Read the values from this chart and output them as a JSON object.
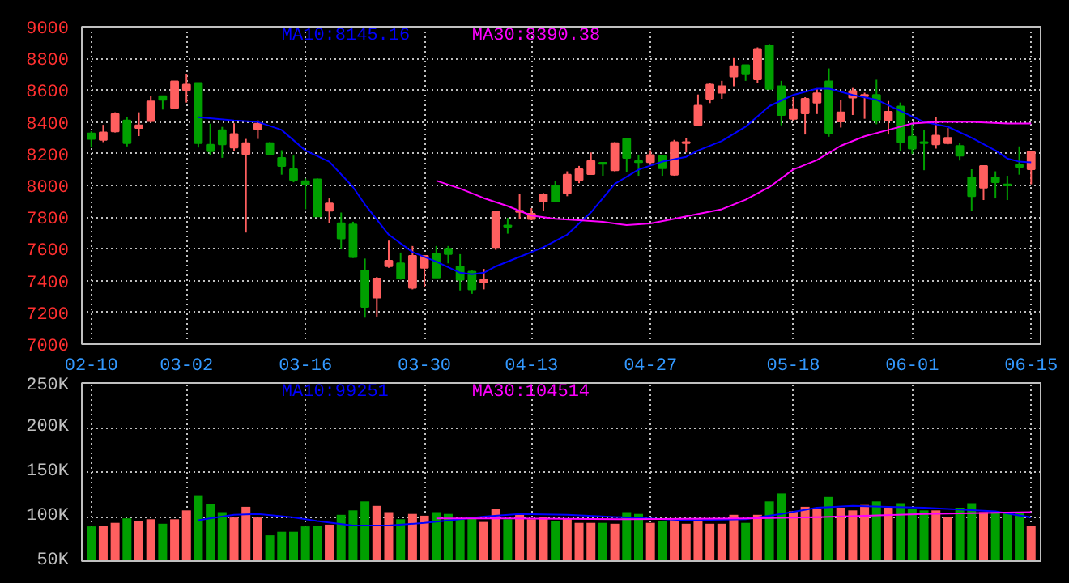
{
  "chart_data": [
    {
      "type": "candlestick",
      "categories": [
        "02-10",
        null,
        null,
        null,
        null,
        null,
        null,
        null,
        "03-02",
        null,
        null,
        null,
        null,
        null,
        null,
        null,
        null,
        null,
        "03-16",
        null,
        null,
        null,
        null,
        null,
        null,
        null,
        null,
        null,
        "03-30",
        null,
        null,
        null,
        null,
        null,
        null,
        null,
        null,
        "04-13",
        null,
        null,
        null,
        null,
        null,
        null,
        null,
        null,
        null,
        "04-27",
        null,
        null,
        null,
        null,
        null,
        null,
        null,
        null,
        null,
        null,
        null,
        "05-18",
        null,
        null,
        null,
        null,
        null,
        null,
        null,
        null,
        null,
        "06-01",
        null,
        null,
        null,
        null,
        null,
        null,
        null,
        null,
        null,
        "06-15"
      ],
      "ohlc": [
        [
          8328,
          8341,
          8239,
          8294
        ],
        [
          8287,
          8382,
          8273,
          8334
        ],
        [
          8341,
          8461,
          8334,
          8450
        ],
        [
          8410,
          8430,
          8246,
          8266
        ],
        [
          8362,
          8461,
          8311,
          8379
        ],
        [
          8406,
          8563,
          8396,
          8529
        ],
        [
          8563,
          8563,
          8478,
          8539
        ],
        [
          8488,
          8655,
          8485,
          8655
        ],
        [
          8601,
          8700,
          8522,
          8635
        ],
        [
          8645,
          8645,
          8239,
          8266
        ],
        [
          8256,
          8389,
          8191,
          8215
        ],
        [
          8348,
          8369,
          8174,
          8259
        ],
        [
          8239,
          8392,
          8218,
          8324
        ],
        [
          8198,
          8293,
          7703,
          8266
        ],
        [
          8355,
          8410,
          8293,
          8389
        ],
        [
          8266,
          8273,
          8191,
          8198
        ],
        [
          8174,
          8222,
          8068,
          8123
        ],
        [
          8102,
          8188,
          8020,
          8034
        ],
        [
          8027,
          8044,
          7850,
          8007
        ],
        [
          8038,
          8044,
          7805,
          7805
        ],
        [
          7840,
          7918,
          7761,
          7887
        ],
        [
          7761,
          7829,
          7601,
          7666
        ],
        [
          7754,
          7771,
          7543,
          7549
        ],
        [
          7464,
          7539,
          7167,
          7235
        ],
        [
          7294,
          7423,
          7174,
          7413
        ],
        [
          7491,
          7652,
          7481,
          7526
        ],
        [
          7509,
          7577,
          7406,
          7413
        ],
        [
          7355,
          7618,
          7345,
          7556
        ],
        [
          7481,
          7556,
          7362,
          7556
        ],
        [
          7567,
          7618,
          7420,
          7420
        ],
        [
          7601,
          7618,
          7509,
          7567
        ],
        [
          7488,
          7567,
          7338,
          7406
        ],
        [
          7457,
          7464,
          7317,
          7345
        ],
        [
          7389,
          7474,
          7345,
          7406
        ],
        [
          7611,
          7840,
          7594,
          7833
        ],
        [
          7747,
          7795,
          7696,
          7740
        ],
        [
          7833,
          7949,
          7788,
          7840
        ],
        [
          7788,
          7857,
          7781,
          7822
        ],
        [
          7898,
          7952,
          7840,
          7942
        ],
        [
          8000,
          8027,
          7898,
          7898
        ],
        [
          7952,
          8089,
          7932,
          8068
        ],
        [
          8034,
          8123,
          8014,
          8102
        ],
        [
          8072,
          8208,
          8072,
          8154
        ],
        [
          8143,
          8143,
          8061,
          8136
        ],
        [
          8096,
          8273,
          8089,
          8266
        ],
        [
          8293,
          8293,
          8085,
          8174
        ],
        [
          8154,
          8191,
          8061,
          8147
        ],
        [
          8147,
          8222,
          8123,
          8191
        ],
        [
          8184,
          8184,
          8061,
          8109
        ],
        [
          8068,
          8287,
          8061,
          8273
        ],
        [
          8266,
          8300,
          8208,
          8273
        ],
        [
          8382,
          8573,
          8375,
          8502
        ],
        [
          8546,
          8648,
          8519,
          8635
        ],
        [
          8584,
          8659,
          8546,
          8625
        ],
        [
          8686,
          8802,
          8625,
          8751
        ],
        [
          8758,
          8758,
          8659,
          8700
        ],
        [
          8669,
          8870,
          8648,
          8860
        ],
        [
          8881,
          8891,
          8608,
          8608
        ],
        [
          8625,
          8659,
          8379,
          8444
        ],
        [
          8420,
          8556,
          8410,
          8481
        ],
        [
          8454,
          8556,
          8321,
          8546
        ],
        [
          8522,
          8608,
          8450,
          8580
        ],
        [
          8655,
          8737,
          8307,
          8331
        ],
        [
          8403,
          8539,
          8365,
          8461
        ],
        [
          8553,
          8614,
          8444,
          8594
        ],
        [
          8563,
          8584,
          8420,
          8570
        ],
        [
          8570,
          8666,
          8386,
          8413
        ],
        [
          8410,
          8532,
          8321,
          8464
        ],
        [
          8498,
          8522,
          8215,
          8273
        ],
        [
          8307,
          8386,
          8198,
          8232
        ],
        [
          8273,
          8352,
          8096,
          8266
        ],
        [
          8259,
          8430,
          8232,
          8314
        ],
        [
          8266,
          8362,
          8259,
          8300
        ],
        [
          8249,
          8266,
          8157,
          8188
        ],
        [
          8051,
          8102,
          7840,
          7932
        ],
        [
          7986,
          8123,
          7908,
          8123
        ],
        [
          8051,
          8089,
          7918,
          8020
        ],
        [
          8007,
          8061,
          7908,
          8000
        ],
        [
          8130,
          8246,
          8068,
          8116
        ],
        [
          8102,
          8212,
          8007,
          8212
        ]
      ],
      "colors": [
        "#00a000",
        "#ff5f5f",
        "#ff5f5f",
        "#00a000",
        "#ff5f5f",
        "#ff5f5f",
        "#00a000",
        "#ff5f5f",
        "#ff5f5f",
        "#00a000",
        "#00a000",
        "#00a000",
        "#ff5f5f",
        "#ff5f5f",
        "#ff5f5f",
        "#00a000",
        "#00a000",
        "#00a000",
        "#00a000",
        "#00a000",
        "#ff5f5f",
        "#00a000",
        "#00a000",
        "#00a000",
        "#ff5f5f",
        "#ff5f5f",
        "#00a000",
        "#ff5f5f",
        "#ff5f5f",
        "#00a000",
        "#00a000",
        "#00a000",
        "#00a000",
        "#ff5f5f",
        "#ff5f5f",
        "#00a000",
        "#ff5f5f",
        "#ff5f5f",
        "#ff5f5f",
        "#00a000",
        "#ff5f5f",
        "#ff5f5f",
        "#ff5f5f",
        "#00a000",
        "#ff5f5f",
        "#00a000",
        "#00a000",
        "#ff5f5f",
        "#00a000",
        "#ff5f5f",
        "#ff5f5f",
        "#ff5f5f",
        "#ff5f5f",
        "#ff5f5f",
        "#ff5f5f",
        "#00a000",
        "#ff5f5f",
        "#00a000",
        "#00a000",
        "#ff5f5f",
        "#ff5f5f",
        "#ff5f5f",
        "#00a000",
        "#ff5f5f",
        "#ff5f5f",
        "#ff5f5f",
        "#00a000",
        "#ff5f5f",
        "#00a000",
        "#00a000",
        "#00a000",
        "#ff5f5f",
        "#ff5f5f",
        "#00a000",
        "#00a000",
        "#ff5f5f",
        "#00a000",
        "#00a000",
        "#00a000",
        "#ff5f5f"
      ],
      "series": [
        {
          "type": "line",
          "name": "MA10:8145.16",
          "color": "#0000ff",
          "values": [
            null,
            null,
            null,
            null,
            null,
            null,
            null,
            null,
            null,
            8430,
            null,
            null,
            8410,
            null,
            8400,
            null,
            8350,
            null,
            8220,
            null,
            8150,
            null,
            7990,
            7880,
            null,
            7690,
            null,
            7580,
            null,
            7520,
            null,
            7450,
            7440,
            7450,
            7490,
            null,
            7550,
            null,
            7610,
            null,
            7690,
            null,
            7830,
            null,
            8010,
            null,
            8100,
            null,
            8150,
            null,
            8180,
            8220,
            null,
            8280,
            null,
            8370,
            null,
            8500,
            null,
            8570,
            null,
            8610,
            8610,
            null,
            8570,
            null,
            8540,
            null,
            8470,
            null,
            8400,
            null,
            8370,
            null,
            8300,
            null,
            8220,
            8170,
            8150,
            8145
          ]
        },
        {
          "type": "line",
          "name": "MA30:8390.38",
          "color": "#ff00ff",
          "values": [
            null,
            null,
            null,
            null,
            null,
            null,
            null,
            null,
            null,
            null,
            null,
            null,
            null,
            null,
            null,
            null,
            null,
            null,
            null,
            null,
            null,
            null,
            null,
            null,
            null,
            null,
            null,
            null,
            null,
            8030,
            null,
            7980,
            null,
            7920,
            null,
            7870,
            null,
            7810,
            null,
            7790,
            null,
            7780,
            null,
            7770,
            null,
            7750,
            null,
            7760,
            null,
            7790,
            null,
            7820,
            null,
            7850,
            null,
            7910,
            null,
            7990,
            null,
            8100,
            null,
            8160,
            null,
            8250,
            null,
            8310,
            null,
            8350,
            null,
            8390,
            null,
            8400,
            null,
            null,
            8400,
            null,
            null,
            8390,
            null,
            8390
          ]
        }
      ],
      "ylim": [
        7000,
        9000
      ],
      "yticks": [
        7000,
        7200,
        7400,
        7600,
        7800,
        8000,
        8200,
        8400,
        8600,
        8800,
        9000
      ],
      "grid": true
    },
    {
      "type": "bar",
      "values": [
        89000,
        90000,
        93000,
        98000,
        95000,
        97000,
        92000,
        97000,
        107000,
        124000,
        114000,
        105000,
        99000,
        111000,
        99000,
        79000,
        83000,
        83000,
        89000,
        90000,
        91000,
        102000,
        107000,
        117000,
        112000,
        105000,
        97000,
        103000,
        101000,
        105000,
        103000,
        97000,
        98000,
        94000,
        109000,
        97000,
        102000,
        97000,
        100000,
        95000,
        98000,
        93000,
        93000,
        93000,
        92000,
        105000,
        103000,
        93000,
        95000,
        97000,
        92000,
        97000,
        92000,
        92000,
        102000,
        93000,
        102000,
        117000,
        126000,
        106000,
        111000,
        109000,
        122000,
        110000,
        107000,
        113000,
        117000,
        110000,
        115000,
        109000,
        107000,
        107000,
        100000,
        110000,
        115000,
        105000,
        105000,
        105000,
        105000,
        90000
      ],
      "colors": [
        "#00a000",
        "#ff5f5f",
        "#ff5f5f",
        "#00a000",
        "#ff5f5f",
        "#ff5f5f",
        "#00a000",
        "#ff5f5f",
        "#ff5f5f",
        "#00a000",
        "#00a000",
        "#00a000",
        "#ff5f5f",
        "#ff5f5f",
        "#ff5f5f",
        "#00a000",
        "#00a000",
        "#00a000",
        "#00a000",
        "#00a000",
        "#ff5f5f",
        "#00a000",
        "#00a000",
        "#00a000",
        "#ff5f5f",
        "#ff5f5f",
        "#00a000",
        "#ff5f5f",
        "#ff5f5f",
        "#00a000",
        "#00a000",
        "#00a000",
        "#00a000",
        "#ff5f5f",
        "#ff5f5f",
        "#00a000",
        "#ff5f5f",
        "#ff5f5f",
        "#ff5f5f",
        "#00a000",
        "#ff5f5f",
        "#ff5f5f",
        "#ff5f5f",
        "#00a000",
        "#ff5f5f",
        "#00a000",
        "#00a000",
        "#ff5f5f",
        "#00a000",
        "#ff5f5f",
        "#ff5f5f",
        "#ff5f5f",
        "#ff5f5f",
        "#ff5f5f",
        "#ff5f5f",
        "#00a000",
        "#ff5f5f",
        "#00a000",
        "#00a000",
        "#ff5f5f",
        "#ff5f5f",
        "#ff5f5f",
        "#00a000",
        "#ff5f5f",
        "#ff5f5f",
        "#ff5f5f",
        "#00a000",
        "#ff5f5f",
        "#00a000",
        "#00a000",
        "#00a000",
        "#ff5f5f",
        "#ff5f5f",
        "#00a000",
        "#00a000",
        "#ff5f5f",
        "#00a000",
        "#00a000",
        "#00a000",
        "#ff5f5f"
      ],
      "series": [
        {
          "type": "line",
          "name": "MA10:99251",
          "color": "#0000ff",
          "values": [
            null,
            null,
            null,
            null,
            null,
            null,
            null,
            null,
            null,
            96000,
            null,
            null,
            102000,
            null,
            103000,
            null,
            null,
            99000,
            null,
            95000,
            null,
            null,
            90000,
            null,
            null,
            90000,
            null,
            null,
            93000,
            null,
            null,
            97000,
            null,
            100000,
            null,
            null,
            103000,
            null,
            null,
            null,
            102000,
            null,
            null,
            null,
            null,
            99000,
            null,
            null,
            null,
            null,
            96000,
            null,
            null,
            null,
            null,
            97000,
            null,
            null,
            103000,
            null,
            null,
            110000,
            null,
            null,
            112000,
            null,
            null,
            111000,
            null,
            null,
            110000,
            null,
            null,
            108000,
            null,
            null,
            106000,
            null,
            null,
            99000
          ]
        },
        {
          "type": "line",
          "name": "MA30:104514",
          "color": "#ff00ff",
          "values": [
            null,
            null,
            null,
            null,
            null,
            null,
            null,
            null,
            null,
            null,
            null,
            null,
            null,
            null,
            null,
            null,
            null,
            null,
            null,
            null,
            null,
            null,
            null,
            null,
            null,
            null,
            null,
            null,
            null,
            98000,
            null,
            null,
            null,
            null,
            null,
            98000,
            null,
            null,
            null,
            null,
            null,
            null,
            null,
            null,
            null,
            97000,
            null,
            null,
            null,
            null,
            null,
            null,
            null,
            null,
            null,
            98000,
            null,
            null,
            null,
            null,
            99000,
            null,
            null,
            null,
            null,
            101000,
            null,
            null,
            null,
            null,
            103000,
            null,
            null,
            null,
            null,
            null,
            null,
            null,
            null,
            105000
          ]
        }
      ],
      "ylim": [
        50000,
        250000
      ],
      "yticks": [
        {
          "value": 50000,
          "label": "50K"
        },
        {
          "value": 100000,
          "label": "100K"
        },
        {
          "value": 150000,
          "label": "150K"
        },
        {
          "value": 200000,
          "label": "200K"
        },
        {
          "value": 250000,
          "label": "250K"
        }
      ],
      "grid": true,
      "tick_labels": "y"
    }
  ]
}
